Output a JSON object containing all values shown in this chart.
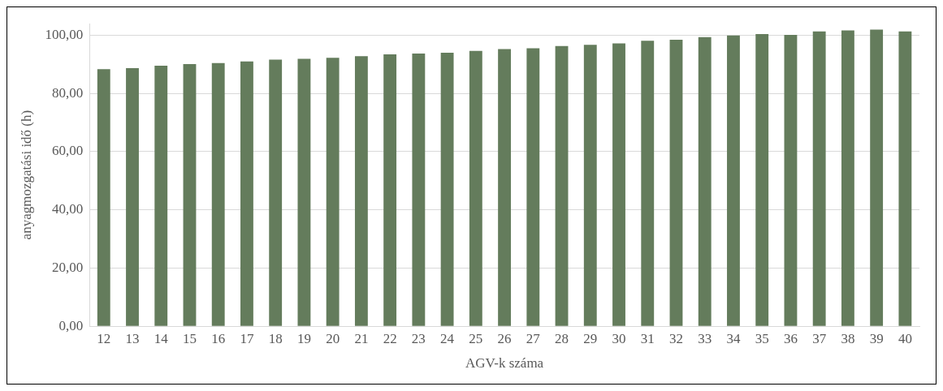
{
  "chart_data": {
    "type": "bar",
    "xlabel": "AGV-k száma",
    "ylabel": "anyagmozgatási idő (h)",
    "categories": [
      "12",
      "13",
      "14",
      "15",
      "16",
      "17",
      "18",
      "19",
      "20",
      "21",
      "22",
      "23",
      "24",
      "25",
      "26",
      "27",
      "28",
      "29",
      "30",
      "31",
      "32",
      "33",
      "34",
      "35",
      "36",
      "37",
      "38",
      "39",
      "40"
    ],
    "values": [
      88.3,
      88.7,
      89.5,
      90.1,
      90.4,
      91.0,
      91.6,
      91.9,
      92.2,
      92.8,
      93.4,
      93.7,
      94.0,
      94.6,
      95.2,
      95.5,
      96.3,
      96.7,
      97.2,
      98.1,
      98.4,
      99.3,
      99.9,
      100.4,
      100.1,
      101.3,
      101.6,
      101.9,
      101.3
    ],
    "color": "#647c5c",
    "ylim": [
      0,
      104
    ],
    "yticks": [
      {
        "value": 0,
        "label": "0,00"
      },
      {
        "value": 20,
        "label": "20,00"
      },
      {
        "value": 40,
        "label": "40,00"
      },
      {
        "value": 60,
        "label": "60,00"
      },
      {
        "value": 80,
        "label": "80,00"
      },
      {
        "value": 100,
        "label": "100,00"
      }
    ],
    "grid": "y",
    "legend": false
  }
}
